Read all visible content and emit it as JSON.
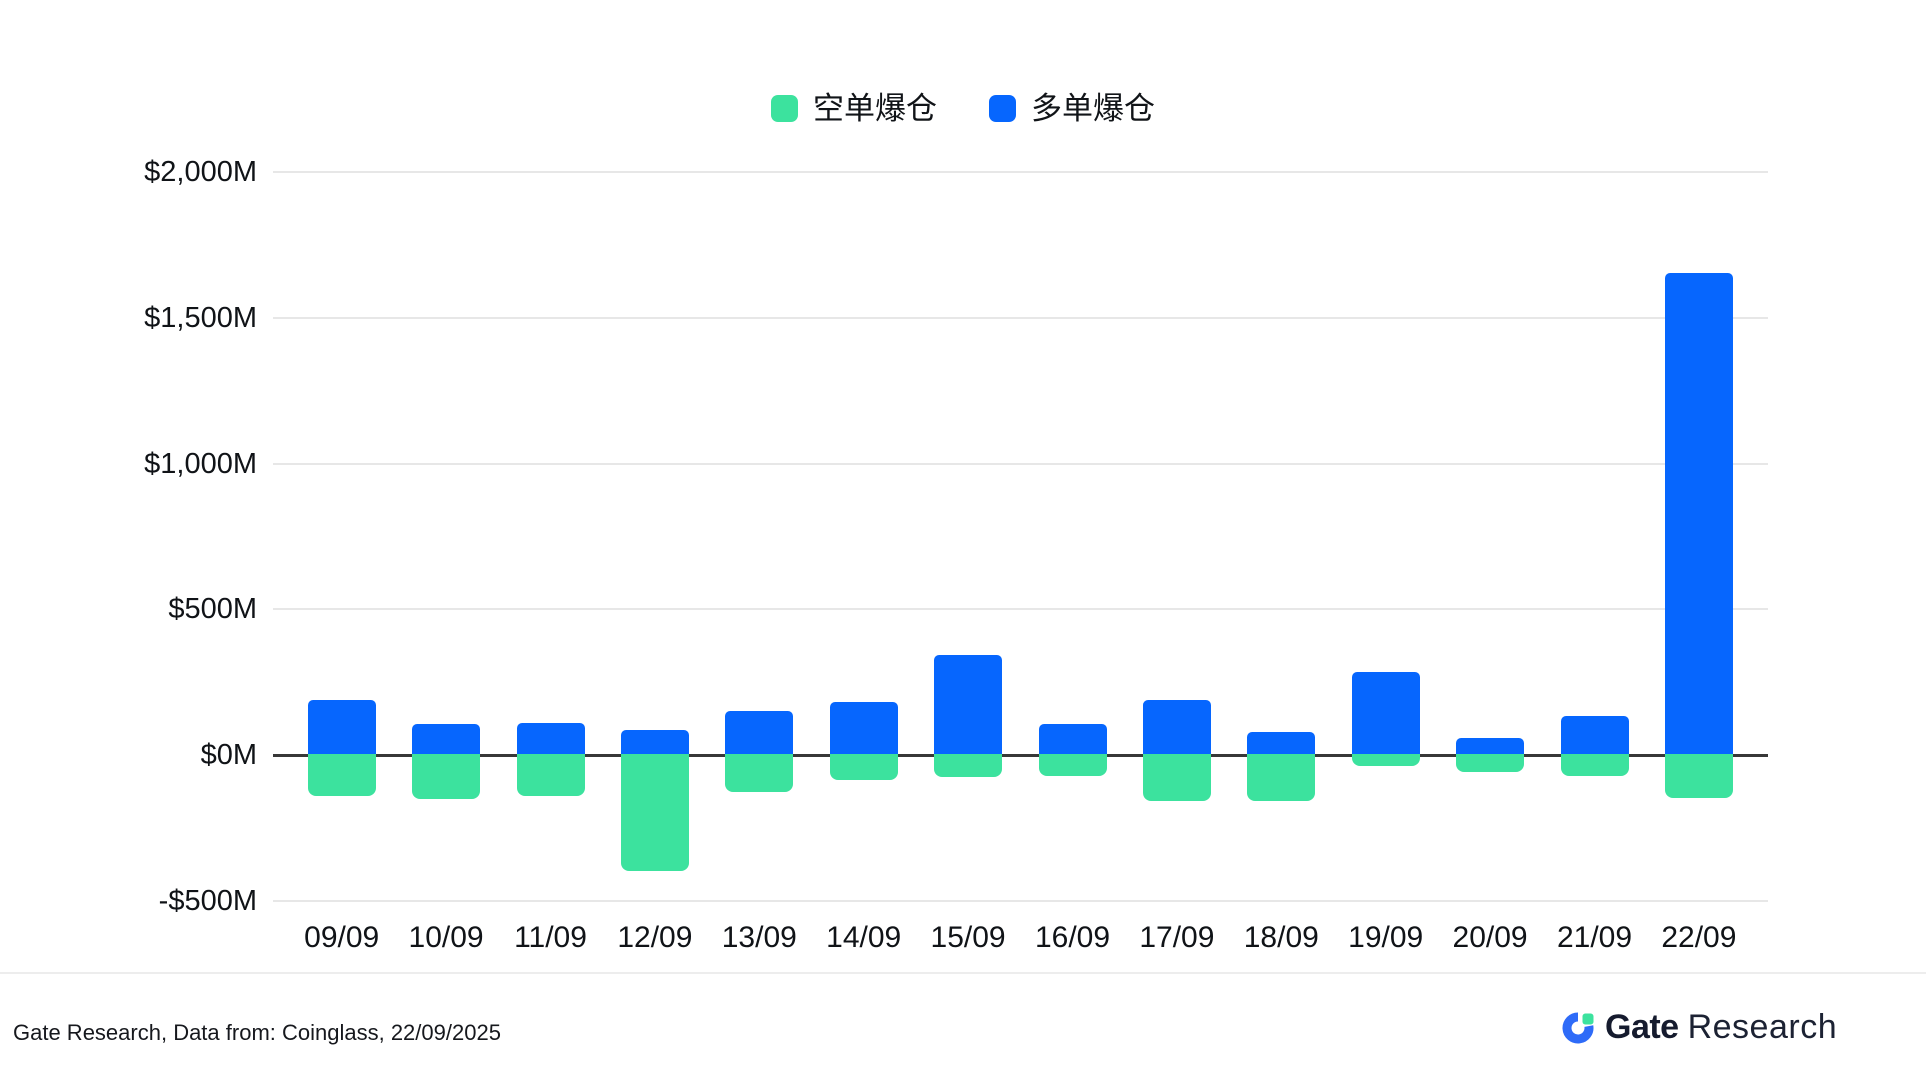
{
  "legend": {
    "items": [
      {
        "label": "空单爆仓",
        "color": "#3CE29E"
      },
      {
        "label": "多单爆仓",
        "color": "#0666FE"
      }
    ]
  },
  "chart_data": {
    "type": "bar",
    "stacked": true,
    "title": "",
    "xlabel": "",
    "ylabel": "",
    "categories": [
      "09/09",
      "10/09",
      "11/09",
      "12/09",
      "13/09",
      "14/09",
      "15/09",
      "16/09",
      "17/09",
      "18/09",
      "19/09",
      "20/09",
      "21/09",
      "22/09"
    ],
    "series": [
      {
        "name": "空单爆仓",
        "color": "#3CE29E",
        "values": [
          -139,
          -151,
          -140,
          -396,
          -127,
          -84,
          -76,
          -72,
          -158,
          -158,
          -36,
          -57,
          -70,
          -146
        ]
      },
      {
        "name": "多单爆仓",
        "color": "#0666FE",
        "values": [
          190,
          108,
          110,
          88,
          150,
          184,
          345,
          107,
          190,
          81,
          286,
          60,
          136,
          1653
        ]
      }
    ],
    "ylim": [
      -500,
      2000
    ],
    "yticks": [
      {
        "value": 2000,
        "label": "$2,000M"
      },
      {
        "value": 1500,
        "label": "$1,500M"
      },
      {
        "value": 1000,
        "label": "$1,000M"
      },
      {
        "value": 500,
        "label": "$500M"
      },
      {
        "value": 0,
        "label": "$0M"
      },
      {
        "value": -500,
        "label": "-$500M"
      }
    ],
    "grid": true,
    "legend_position": "top"
  },
  "colors": {
    "long_bar": "#0666FE",
    "short_bar": "#3CE29E",
    "gridline": "#E7E7E7",
    "zero_line": "#383838",
    "logo_blue": "#2E6BF8",
    "logo_green": "#3CE29E"
  },
  "footer": {
    "source": "Gate Research, Data from: Coinglass, 22/09/2025"
  },
  "logo": {
    "brand": "Gate",
    "suffix": "Research"
  }
}
